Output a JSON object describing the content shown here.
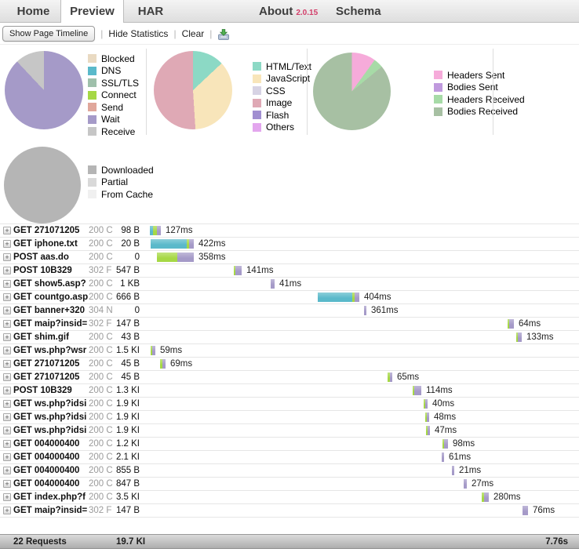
{
  "tabs": {
    "items": [
      {
        "label": "Home"
      },
      {
        "label": "Preview"
      },
      {
        "label": "HAR"
      }
    ],
    "about_label": "About",
    "version": "2.0.15",
    "schema_label": "Schema"
  },
  "toolbar": {
    "show_timeline": "Show Page Timeline",
    "hide_stats": "Hide Statistics",
    "clear": "Clear",
    "save_icon": "save-har-icon"
  },
  "icons": {
    "expand": "+",
    "separator": "|"
  },
  "timing_colors": {
    "dns": "#5ab9ca",
    "connect": "#a6d845",
    "wait": "#a59ac8",
    "receive": "#c6c6c6"
  },
  "chart_data": [
    {
      "type": "pie",
      "name": "page-timings",
      "legend_position": "right",
      "slices": [
        {
          "label": "Blocked",
          "color": "#e9dac2",
          "pct": 0
        },
        {
          "label": "DNS",
          "color": "#5ab9ca",
          "pct": 0
        },
        {
          "label": "SSL/TLS",
          "color": "#9fc0ab",
          "pct": 0
        },
        {
          "label": "Connect",
          "color": "#a6d845",
          "pct": 0
        },
        {
          "label": "Send",
          "color": "#e0a79b",
          "pct": 0
        },
        {
          "label": "Wait",
          "color": "#a59ac8",
          "pct": 88
        },
        {
          "label": "Receive",
          "color": "#c6c6c6",
          "pct": 12
        }
      ]
    },
    {
      "type": "pie",
      "name": "content-types",
      "legend_position": "right",
      "slices": [
        {
          "label": "HTML/Text",
          "color": "#8cd9c5",
          "pct": 13
        },
        {
          "label": "JavaScript",
          "color": "#f8e5ba",
          "pct": 36
        },
        {
          "label": "CSS",
          "color": "#d7d3e4",
          "pct": 0
        },
        {
          "label": "Image",
          "color": "#dfa9b5",
          "pct": 51
        },
        {
          "label": "Flash",
          "color": "#a18fd1",
          "pct": 0
        },
        {
          "label": "Others",
          "color": "#e3a6ee",
          "pct": 0
        }
      ]
    },
    {
      "type": "pie",
      "name": "traffic",
      "legend_position": "right",
      "slices": [
        {
          "label": "Headers Sent",
          "color": "#f6abda",
          "pct": 10
        },
        {
          "label": "Bodies Sent",
          "color": "#c09ade",
          "pct": 0
        },
        {
          "label": "Headers Received",
          "color": "#a7dba7",
          "pct": 4
        },
        {
          "label": "Bodies Received",
          "color": "#a7c0a3",
          "pct": 86
        }
      ]
    },
    {
      "type": "pie",
      "name": "cache",
      "legend_position": "right",
      "slices": [
        {
          "label": "Downloaded",
          "color": "#b5b5b5",
          "pct": 100
        },
        {
          "label": "Partial",
          "color": "#d9d9d9",
          "pct": 0
        },
        {
          "label": "From Cache",
          "color": "#f0f0f0",
          "pct": 0
        }
      ]
    }
  ],
  "requests": {
    "timeline_origin": 185,
    "rows": [
      {
        "method": "GET",
        "url": "271071205",
        "status": "200 C",
        "size": "98 B",
        "time": "127ms",
        "bar": {
          "offset": 6,
          "segments": [
            [
              "dns",
              4
            ],
            [
              "connect",
              5
            ],
            [
              "wait",
              5
            ]
          ]
        }
      },
      {
        "method": "GET",
        "url": "iphone.txt",
        "status": "200 C",
        "size": "20 B",
        "time": "422ms",
        "bar": {
          "offset": 7,
          "segments": [
            [
              "dns",
              46
            ],
            [
              "connect",
              3
            ],
            [
              "wait",
              6
            ]
          ]
        }
      },
      {
        "method": "POST",
        "url": "aas.do",
        "status": "200 C",
        "size": "0",
        "time": "358ms",
        "bar": {
          "offset": 15,
          "segments": [
            [
              "connect",
              26
            ],
            [
              "wait",
              21
            ]
          ]
        }
      },
      {
        "method": "POST",
        "url": "10B329",
        "status": "302 F",
        "size": "547 B",
        "time": "141ms",
        "bar": {
          "offset": 113,
          "segments": [
            [
              "connect",
              2
            ],
            [
              "wait",
              8
            ]
          ]
        }
      },
      {
        "method": "GET",
        "url": "show5.asp?",
        "status": "200 C",
        "size": "1 KB",
        "time": "41ms",
        "bar": {
          "offset": 160,
          "segments": [
            [
              "wait",
              5
            ]
          ]
        }
      },
      {
        "method": "GET",
        "url": "countgo.asp",
        "status": "200 C",
        "size": "666 B",
        "time": "404ms",
        "bar": {
          "offset": 220,
          "segments": [
            [
              "dns",
              44
            ],
            [
              "connect",
              3
            ],
            [
              "wait",
              6
            ]
          ]
        }
      },
      {
        "method": "GET",
        "url": "banner+320",
        "status": "304 N",
        "size": "0",
        "time": "361ms",
        "bar": {
          "offset": 279,
          "segments": [
            [
              "wait",
              3
            ]
          ]
        }
      },
      {
        "method": "GET",
        "url": "maip?insid=",
        "status": "302 F",
        "size": "147 B",
        "time": "64ms",
        "bar": {
          "offset": 462,
          "segments": [
            [
              "connect",
              2
            ],
            [
              "wait",
              6
            ]
          ]
        }
      },
      {
        "method": "GET",
        "url": "shim.gif",
        "status": "200 C",
        "size": "43 B",
        "time": "133ms",
        "bar": {
          "offset": 473,
          "segments": [
            [
              "connect",
              2
            ],
            [
              "wait",
              5
            ]
          ]
        }
      },
      {
        "method": "GET",
        "url": "ws.php?wsr",
        "status": "200 C",
        "size": "1.5 KI",
        "time": "59ms",
        "bar": {
          "offset": 7,
          "segments": [
            [
              "connect",
              2
            ],
            [
              "wait",
              4
            ]
          ]
        }
      },
      {
        "method": "GET",
        "url": "271071205",
        "status": "200 C",
        "size": "45 B",
        "time": "69ms",
        "bar": {
          "offset": 19,
          "segments": [
            [
              "connect",
              3
            ],
            [
              "wait",
              4
            ]
          ]
        }
      },
      {
        "method": "GET",
        "url": "271071205",
        "status": "200 C",
        "size": "45 B",
        "time": "65ms",
        "bar": {
          "offset": 309,
          "segments": [
            [
              "connect",
              3
            ],
            [
              "wait",
              3
            ]
          ]
        }
      },
      {
        "method": "POST",
        "url": "10B329",
        "status": "200 C",
        "size": "1.3 KI",
        "time": "114ms",
        "bar": {
          "offset": 341,
          "segments": [
            [
              "connect",
              2
            ],
            [
              "wait",
              9
            ]
          ]
        }
      },
      {
        "method": "GET",
        "url": "ws.php?idsi",
        "status": "200 C",
        "size": "1.9 KI",
        "time": "40ms",
        "bar": {
          "offset": 355,
          "segments": [
            [
              "connect",
              2
            ],
            [
              "wait",
              3
            ]
          ]
        }
      },
      {
        "method": "GET",
        "url": "ws.php?idsi",
        "status": "200 C",
        "size": "1.9 KI",
        "time": "48ms",
        "bar": {
          "offset": 357,
          "segments": [
            [
              "connect",
              2
            ],
            [
              "wait",
              3
            ]
          ]
        }
      },
      {
        "method": "GET",
        "url": "ws.php?idsi",
        "status": "200 C",
        "size": "1.9 KI",
        "time": "47ms",
        "bar": {
          "offset": 358,
          "segments": [
            [
              "connect",
              2
            ],
            [
              "wait",
              3
            ]
          ]
        }
      },
      {
        "method": "GET",
        "url": "004000400",
        "status": "200 C",
        "size": "1.2 KI",
        "time": "98ms",
        "bar": {
          "offset": 379,
          "segments": [
            [
              "connect",
              2
            ],
            [
              "wait",
              5
            ]
          ]
        }
      },
      {
        "method": "GET",
        "url": "004000400",
        "status": "200 C",
        "size": "2.1 KI",
        "time": "61ms",
        "bar": {
          "offset": 378,
          "segments": [
            [
              "wait",
              3
            ]
          ]
        }
      },
      {
        "method": "GET",
        "url": "004000400",
        "status": "200 C",
        "size": "855 B",
        "time": "21ms",
        "bar": {
          "offset": 391,
          "segments": [
            [
              "wait",
              3
            ]
          ]
        }
      },
      {
        "method": "GET",
        "url": "004000400",
        "status": "200 C",
        "size": "847 B",
        "time": "27ms",
        "bar": {
          "offset": 406,
          "segments": [
            [
              "wait",
              4
            ]
          ]
        }
      },
      {
        "method": "GET",
        "url": "index.php?f",
        "status": "200 C",
        "size": "3.5 KI",
        "time": "280ms",
        "bar": {
          "offset": 429,
          "segments": [
            [
              "connect",
              3
            ],
            [
              "wait",
              6
            ]
          ]
        }
      },
      {
        "method": "GET",
        "url": "maip?insid=",
        "status": "302 F",
        "size": "147 B",
        "time": "76ms",
        "bar": {
          "offset": 481,
          "segments": [
            [
              "wait",
              7
            ]
          ]
        }
      }
    ],
    "footer": {
      "count": "22 Requests",
      "size": "19.7 KI",
      "time": "7.76s"
    }
  }
}
